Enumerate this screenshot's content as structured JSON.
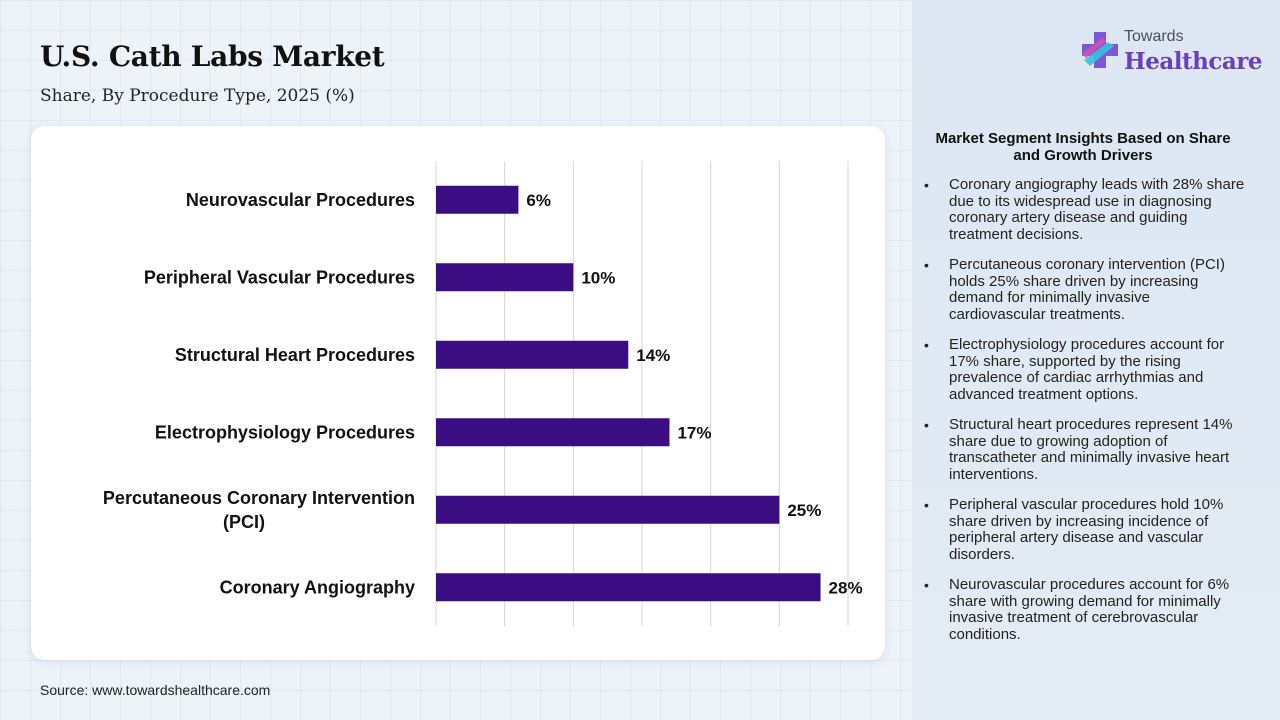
{
  "header": {
    "title": "U.S. Cath Labs Market",
    "subtitle": "Share, By Procedure Type, 2025 (%)"
  },
  "source": "Source: www.towardshealthcare.com",
  "logo": {
    "top": "Towards",
    "main": "Healthcare"
  },
  "insights": {
    "title": "Market Segment Insights Based on Share and Growth Drivers",
    "items": [
      "Coronary angiography leads with 28% share due to its widespread use in diagnosing coronary artery disease and guiding treatment decisions.",
      "Percutaneous coronary intervention (PCI) holds 25% share driven by increasing demand for minimally invasive cardiovascular treatments.",
      "Electrophysiology procedures account for 17% share, supported by the rising prevalence of cardiac arrhythmias and advanced treatment options.",
      "Structural heart procedures represent 14% share due to growing adoption of transcatheter and minimally invasive heart interventions.",
      "Peripheral vascular procedures hold 10% share driven by increasing incidence of peripheral artery disease and vascular disorders.",
      "Neurovascular procedures account for 6% share with growing demand for minimally invasive treatment of cerebrovascular conditions."
    ]
  },
  "colors": {
    "bar": "#3b0d82",
    "grid": "#d4d4d4",
    "logo_accent": "#6b3fb8"
  },
  "chart_data": {
    "type": "bar",
    "orientation": "horizontal",
    "categories": [
      [
        "Neurovascular Procedures"
      ],
      [
        "Peripheral Vascular Procedures"
      ],
      [
        "Structural Heart Procedures"
      ],
      [
        "Electrophysiology Procedures"
      ],
      [
        "Percutaneous Coronary Intervention",
        "(PCI)"
      ],
      [
        "Coronary Angiography"
      ]
    ],
    "values": [
      6,
      10,
      14,
      17,
      25,
      28
    ],
    "value_labels": [
      "6%",
      "10%",
      "14%",
      "17%",
      "25%",
      "28%"
    ],
    "xlim": [
      0,
      30
    ],
    "grid": true
  }
}
